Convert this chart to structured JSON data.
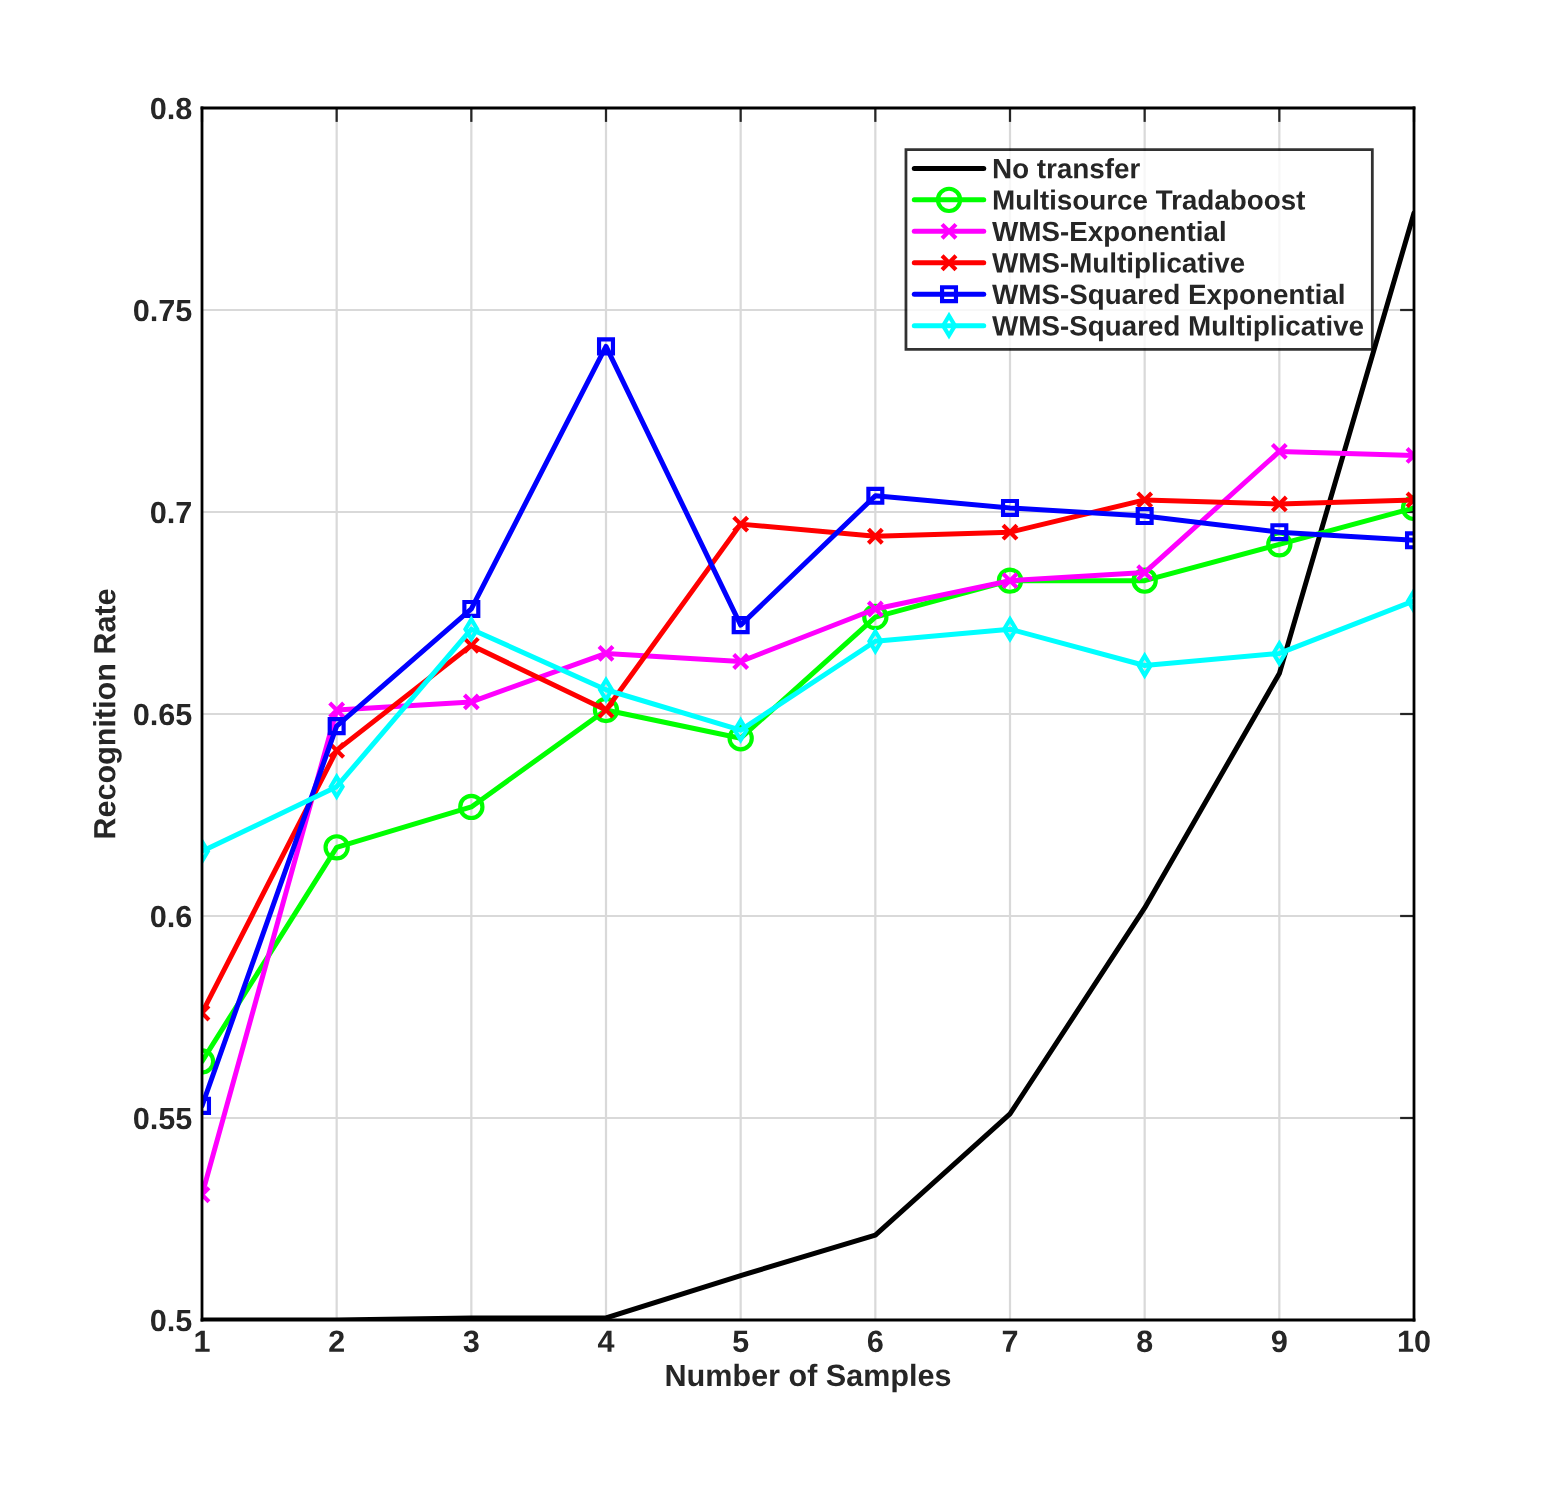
{
  "chart_data": {
    "type": "line",
    "xlabel": "Number of Samples",
    "ylabel": "Recognition Rate",
    "x": [
      1,
      2,
      3,
      4,
      5,
      6,
      7,
      8,
      9,
      10
    ],
    "series": [
      {
        "name": "No transfer",
        "color": "#000000",
        "marker": "none",
        "values": [
          0.5,
          0.5,
          0.5005,
          0.5005,
          0.511,
          0.521,
          0.551,
          0.602,
          0.66,
          0.774
        ]
      },
      {
        "name": "Multisource Tradaboost",
        "color": "#00ff00",
        "marker": "circle",
        "values": [
          0.564,
          0.617,
          0.627,
          0.651,
          0.644,
          0.674,
          0.683,
          0.683,
          0.692,
          0.701
        ]
      },
      {
        "name": "WMS-Exponential",
        "color": "#ff00ff",
        "marker": "cross",
        "values": [
          0.531,
          0.651,
          0.653,
          0.665,
          0.663,
          0.676,
          0.683,
          0.685,
          0.715,
          0.714
        ]
      },
      {
        "name": "WMS-Multiplicative",
        "color": "#ff0000",
        "marker": "cross",
        "values": [
          0.576,
          0.641,
          0.667,
          0.651,
          0.697,
          0.694,
          0.695,
          0.703,
          0.702,
          0.703
        ]
      },
      {
        "name": "WMS-Squared Exponential",
        "color": "#0000ff",
        "marker": "square",
        "values": [
          0.553,
          0.647,
          0.676,
          0.741,
          0.672,
          0.704,
          0.701,
          0.699,
          0.695,
          0.693
        ]
      },
      {
        "name": "WMS-Squared Multiplicative",
        "color": "#00ffff",
        "marker": "diamond",
        "values": [
          0.616,
          0.632,
          0.671,
          0.656,
          0.646,
          0.668,
          0.671,
          0.662,
          0.665,
          0.678
        ]
      }
    ],
    "xlim": [
      1,
      10
    ],
    "xticks": [
      1,
      2,
      3,
      4,
      5,
      6,
      7,
      8,
      9,
      10
    ],
    "ylim": [
      0.5,
      0.8
    ],
    "yticks": [
      0.5,
      0.55,
      0.6,
      0.65,
      0.7,
      0.75,
      0.8
    ],
    "grid": true,
    "legend": "top right",
    "line_style": "solid"
  }
}
